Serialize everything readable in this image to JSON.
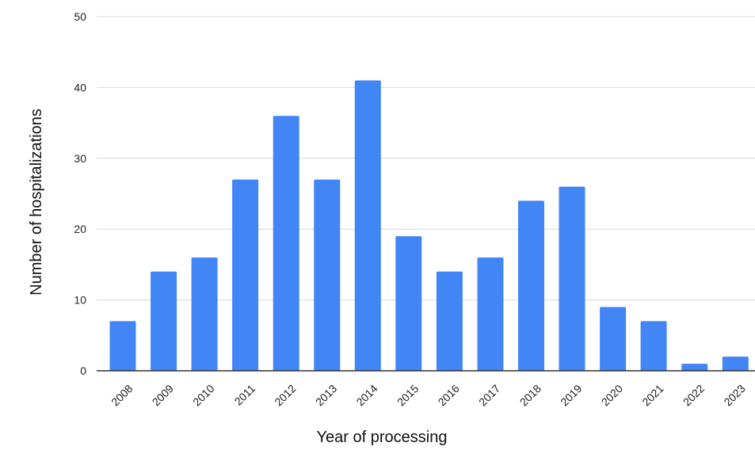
{
  "chart_data": {
    "type": "bar",
    "title": "",
    "xlabel": "Year of processing",
    "ylabel": "Number of hospitalizations",
    "categories": [
      "2008",
      "2009",
      "2010",
      "2011",
      "2012",
      "2013",
      "2014",
      "2015",
      "2016",
      "2017",
      "2018",
      "2019",
      "2020",
      "2021",
      "2022",
      "2023"
    ],
    "values": [
      7,
      14,
      16,
      27,
      36,
      27,
      41,
      19,
      14,
      16,
      24,
      26,
      9,
      7,
      1,
      2
    ],
    "ylim": [
      0,
      50
    ],
    "yticks": [
      0,
      10,
      20,
      30,
      40,
      50
    ],
    "grid": true,
    "bar_color": "#4285f4"
  }
}
